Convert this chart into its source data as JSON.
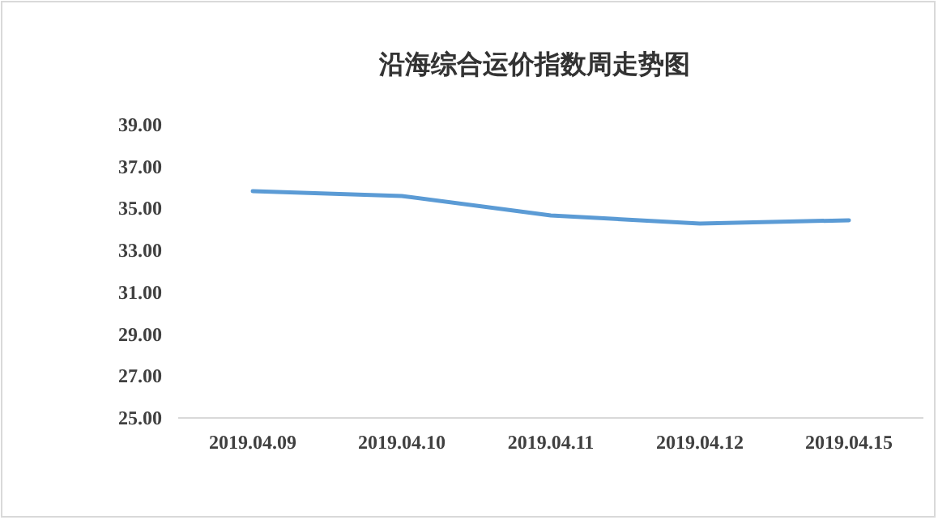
{
  "chart_data": {
    "type": "line",
    "title": "沿海综合运价指数周走势图",
    "categories": [
      "2019.04.09",
      "2019.04.10",
      "2019.04.11",
      "2019.04.12",
      "2019.04.15"
    ],
    "series": [
      {
        "color": "#5b9bd5",
        "values": [
          35.83,
          35.6,
          34.67,
          34.28,
          34.44
        ]
      }
    ],
    "ylim": [
      25,
      39
    ],
    "yticks": [
      {
        "value": 25,
        "label": "25.00"
      },
      {
        "value": 27,
        "label": "27.00"
      },
      {
        "value": 29,
        "label": "29.00"
      },
      {
        "value": 31,
        "label": "31.00"
      },
      {
        "value": 33,
        "label": "33.00"
      },
      {
        "value": 35,
        "label": "35.00"
      },
      {
        "value": 37,
        "label": "37.00"
      },
      {
        "value": 39,
        "label": "39.00"
      }
    ]
  }
}
